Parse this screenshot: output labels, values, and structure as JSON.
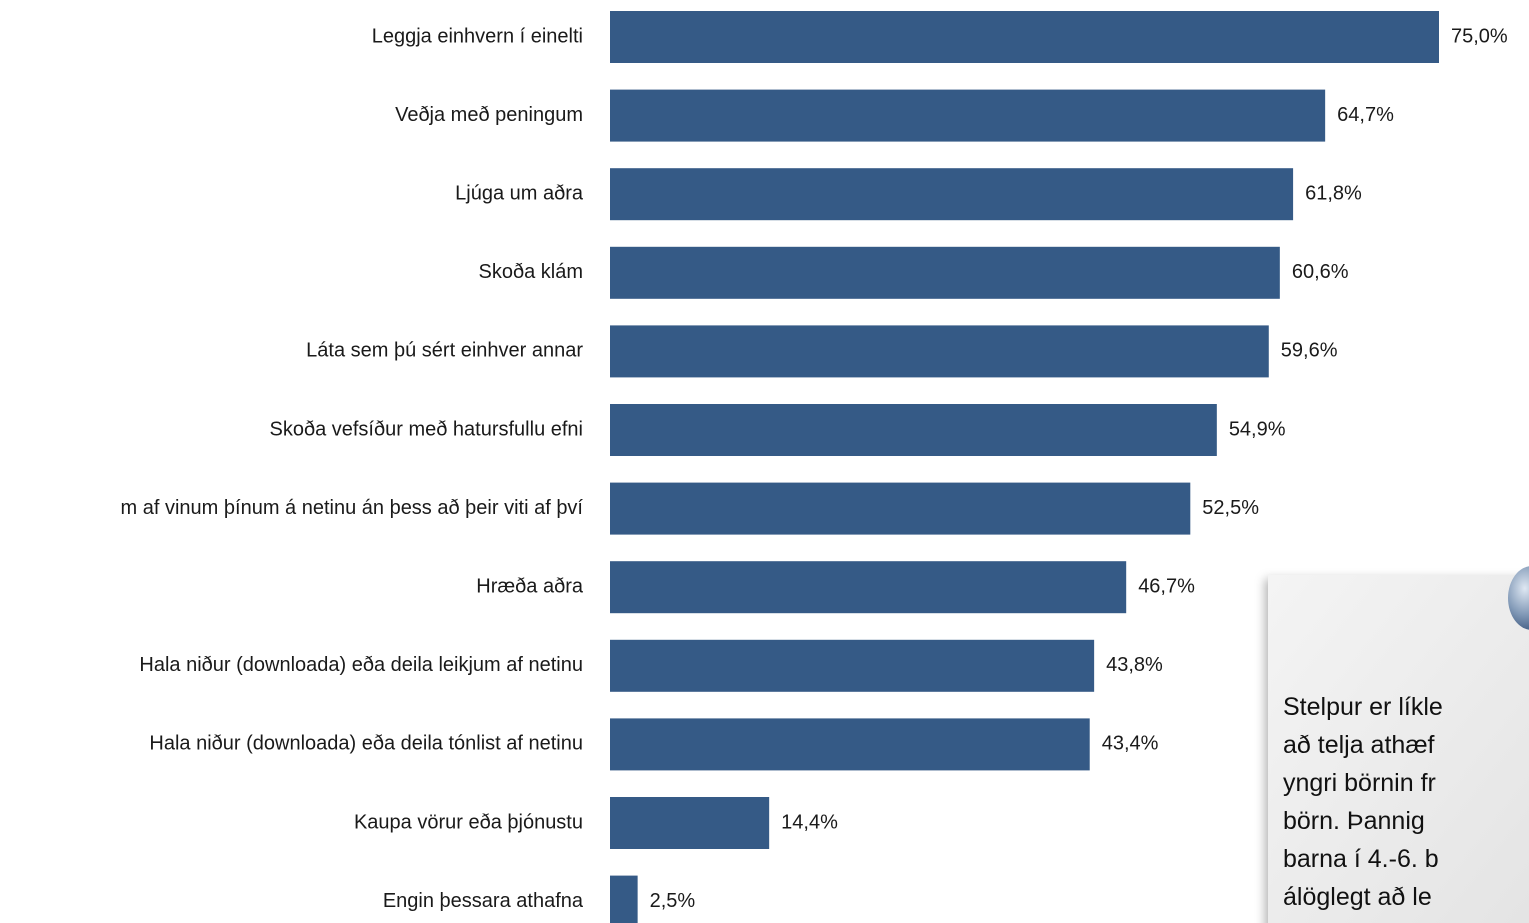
{
  "chart_data": {
    "type": "bar",
    "orientation": "horizontal",
    "color": "#355a86",
    "categories": [
      "Leggja einhvern í einelti",
      "Veðja með peningum",
      "Ljúga um aðra",
      "Skoða klám",
      "Láta sem þú sért einhver annar",
      "Skoða vefsíður með hatursfullu efni",
      "m af vinum þínum á netinu án þess að þeir viti af því",
      "Hræða aðra",
      "Hala niður (downloada) eða deila leikjum af netinu",
      "Hala niður (downloada) eða deila tónlist af netinu",
      "Kaupa vörur eða þjónustu",
      "Engin þessara athafna"
    ],
    "values": [
      75.0,
      64.7,
      61.8,
      60.6,
      59.6,
      54.9,
      52.5,
      46.7,
      43.8,
      43.4,
      14.4,
      2.5
    ],
    "value_labels": [
      "75,0%",
      "64,7%",
      "61,8%",
      "60,6%",
      "59,6%",
      "54,9%",
      "52,5%",
      "46,7%",
      "43,8%",
      "43,4%",
      "14,4%",
      "2,5%"
    ],
    "annotation_lines": [
      "Stelpur er líkle",
      "að telja athæf",
      "yngri börnin fr",
      "börn. Þannig",
      "barna í 4.-6. b",
      "álöglegt að le"
    ]
  }
}
